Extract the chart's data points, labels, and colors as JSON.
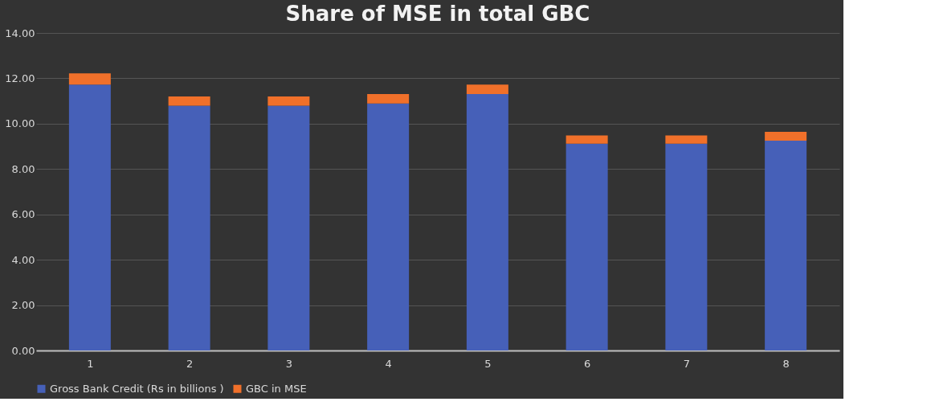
{
  "chart_data": {
    "type": "bar",
    "title": "Share of MSE in total GBC",
    "categories": [
      "1",
      "2",
      "3",
      "4",
      "5",
      "6",
      "7",
      "8"
    ],
    "stacked": true,
    "series": [
      {
        "name": "Gross Bank Credit (Rs in billions )",
        "color": "#4660b8",
        "values": [
          11.72,
          10.79,
          10.79,
          10.89,
          11.31,
          9.12,
          9.12,
          9.25
        ]
      },
      {
        "name": "GBC in MSE",
        "color": "#f0702a",
        "values": [
          0.5,
          0.41,
          0.41,
          0.42,
          0.41,
          0.36,
          0.36,
          0.39
        ]
      }
    ],
    "ylim": [
      0,
      14
    ],
    "yticks": [
      {
        "value": 0,
        "label": "0.00"
      },
      {
        "value": 2,
        "label": "2.00"
      },
      {
        "value": 4,
        "label": "4.00"
      },
      {
        "value": 6,
        "label": "6.00"
      },
      {
        "value": 8,
        "label": "8.00"
      },
      {
        "value": 10,
        "label": "10.00"
      },
      {
        "value": 12,
        "label": "12.00"
      },
      {
        "value": 14,
        "label": "14.00"
      }
    ],
    "grid": "y",
    "legend": "bottom"
  }
}
